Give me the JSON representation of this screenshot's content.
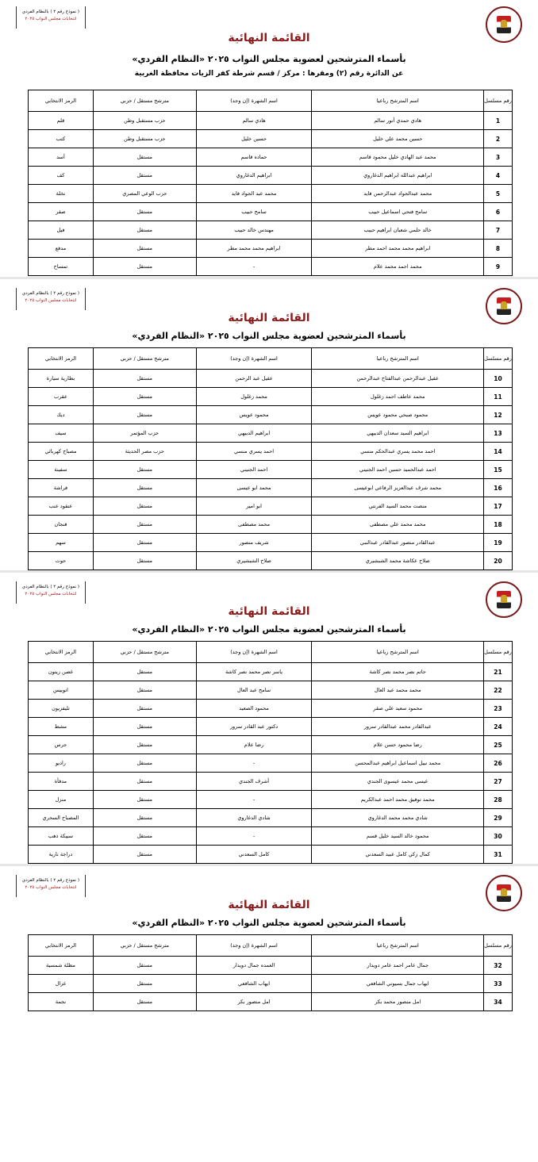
{
  "document": {
    "stamp_line1": "( نموذج رقم ٢ ) بالنظام الفردي",
    "stamp_line2": "انتخابات مجلس النواب ٢٠٢٥",
    "title": "القائمة النهائية",
    "subtitle": "بأسماء المترشحين لعضوية مجلس النواب ٢٠٢٥ «النظام الفردي»",
    "district": "عن الدائرة رقم (٢)   ومقرها : مركز / قسم شرطة كفر الزيات   محافظة الغربية",
    "headers": [
      "رقم مسلسل",
      "اسم المترشح رباعيا",
      "اسم الشهرة (إن وجد)",
      "مترشح مستقل / حزبي",
      "الرمز الانتخابي"
    ],
    "colors": {
      "title": "#8b1a1a"
    },
    "pages": [
      {
        "rows": [
          [
            "1",
            "هادي حمدي أنور سالم",
            "هادي سالم",
            "حزب مستقبل وطن",
            "قلم"
          ],
          [
            "2",
            "حسين محمد علي خليل",
            "حسين خليل",
            "حزب مستقبل وطن",
            "كتب"
          ],
          [
            "3",
            "محمد عبد الهادي خليل محمود قاسم",
            "حماده قاسم",
            "مستقل",
            "أسد"
          ],
          [
            "4",
            "ابراهيم عبدالله ابراهيم الدغاروي",
            "ابراهيم الدغاروي",
            "مستقل",
            "كف"
          ],
          [
            "5",
            "محمد عبدالجواد عبدالرحمن فايد",
            "محمد عبد الجواد فايد",
            "حزب الوعي المصري",
            "نخلة"
          ],
          [
            "6",
            "سامح فتحي اسماعيل حبيب",
            "سامح حبيب",
            "مستقل",
            "صقر"
          ],
          [
            "7",
            "خالد حلمي شعبان ابراهيم حبيب",
            "مهندس خالد حبيب",
            "مستقل",
            "فيل"
          ],
          [
            "8",
            "ابراهيم محمد محمد احمد مطر",
            "ابراهيم محمد محمد مطر",
            "مستقل",
            "مدفع"
          ],
          [
            "9",
            "محمد احمد محمد علام",
            "-",
            "مستقل",
            "تمساح"
          ]
        ]
      },
      {
        "rows": [
          [
            "10",
            "عقيل عبدالرحمن عبدالفتاح عبدالرحمن",
            "عقيل عبد الرحمن",
            "مستقل",
            "بطارية سيارة"
          ],
          [
            "11",
            "محمد عاطف احمد زغلول",
            "محمد زغلول",
            "مستقل",
            "عقرب"
          ],
          [
            "12",
            "محمود صبحي محمود عويس",
            "محمود عويس",
            "مستقل",
            "ديك"
          ],
          [
            "13",
            "ابراهيم السيد سعدان الدبيهي",
            "ابراهيم الدبيهي",
            "حزب المؤتمر",
            "سيف"
          ],
          [
            "14",
            "احمد محمد يسري عبدالحكم منسي",
            "احمد يسري منسي",
            "حزب مصر الحديثة",
            "مصباح كهربائي"
          ],
          [
            "15",
            "احمد عبدالحميد حسين احمد الجنيني",
            "احمد الجنيني",
            "مستقل",
            "سفينة"
          ],
          [
            "16",
            "محمد شرف عبدالعزيز الرفاعي ابوعيسى",
            "محمد ابو عيسى",
            "مستقل",
            "فراشة"
          ],
          [
            "17",
            "منصت محمد السيد الفرنتي",
            "ابو امير",
            "مستقل",
            "عنقود عنب"
          ],
          [
            "18",
            "محمد محمد علي مصطفى",
            "محمد مصطفى",
            "مستقل",
            "فنجان"
          ],
          [
            "19",
            "عبدالقادر منصور عبدالقادر عبدالنبي",
            "شريف منصور",
            "مستقل",
            "سهم"
          ],
          [
            "20",
            "صلاح عكاشة محمد الشبشيري",
            "صلاح الشبشيري",
            "مستقل",
            "حوت"
          ]
        ]
      },
      {
        "rows": [
          [
            "21",
            "حاتم نصر محمد نصر كاشة",
            "ياسر نصر محمد نصر كاشة",
            "مستقل",
            "غصن زيتون"
          ],
          [
            "22",
            "محمد محمد عبد العال",
            "سامح عبد العال",
            "مستقل",
            "اتوبيس"
          ],
          [
            "23",
            "محمود سعيد علي صقر",
            "محمود الصعيد",
            "مستقل",
            "تليفزيون"
          ],
          [
            "24",
            "عبدالقادر محمد عبدالقادر سرور",
            "دكتور عبد القادر سرور",
            "مستقل",
            "مشط"
          ],
          [
            "25",
            "رضا محمود حسن علام",
            "رضا علام",
            "مستقل",
            "جرس"
          ],
          [
            "26",
            "محمد نبيل اسماعيل ابراهيم عبدالمحسن",
            "-",
            "مستقل",
            "راديو"
          ],
          [
            "27",
            "عيسى محمد عيسوى الجندي",
            "أشرف الجندي",
            "مستقل",
            "مدفأة"
          ],
          [
            "28",
            "محمد توفيق محمد احمد عبدالكريم",
            "-",
            "مستقل",
            "منزل"
          ],
          [
            "29",
            "شادي محمد محمد الدغاروي",
            "شادي الدغاروي",
            "مستقل",
            "المصباح السحري"
          ],
          [
            "30",
            "محمود خالد السيد خليل قسم",
            "-",
            "مستقل",
            "سبيكة ذهب"
          ],
          [
            "31",
            "كمال زكي كامل عبيد السعدني",
            "كامل السعدني",
            "مستقل",
            "دراجة نارية"
          ]
        ]
      },
      {
        "rows": [
          [
            "32",
            "جمال عامر احمد عامر دويدار",
            "العمده جمال دويدار",
            "مستقل",
            "مظلة شمسية"
          ],
          [
            "33",
            "ايهاب جمال بسيوني الشافعي",
            "ايهاب الشافعي",
            "مستقل",
            "غزال"
          ],
          [
            "34",
            "امل منصور محمد بكر",
            "امل منصور بكر",
            "مستقل",
            "نجمة"
          ]
        ]
      }
    ]
  }
}
